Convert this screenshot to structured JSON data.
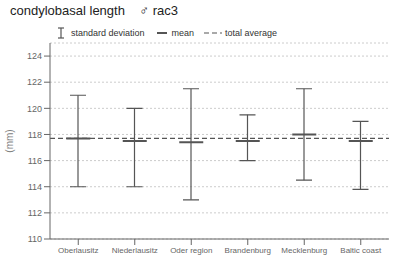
{
  "chart_data": {
    "type": "errorbar",
    "title": "condylobasal length    ♂ rac3",
    "ylabel": "(mm)",
    "categories": [
      "Oberlausitz",
      "Niederlausitz",
      "Oder region",
      "Brandenburg",
      "Mecklenburg",
      "Baltic coast"
    ],
    "series": [
      {
        "name": "standard deviation",
        "type": "errorbar",
        "color": "#555555",
        "upper": [
          121.0,
          120.0,
          121.5,
          119.5,
          121.5,
          119.0
        ],
        "lower": [
          114.0,
          114.0,
          113.0,
          116.0,
          114.5,
          113.8
        ]
      },
      {
        "name": "mean",
        "type": "scatter",
        "marker": "dash",
        "color": "#555555",
        "values": [
          117.7,
          117.5,
          117.4,
          117.5,
          118.0,
          117.5
        ]
      },
      {
        "name": "total average",
        "type": "line",
        "line_style": "dashed",
        "color": "#555555",
        "value": 117.7
      }
    ],
    "ylim": [
      110,
      125
    ],
    "yticks": [
      110,
      112,
      114,
      116,
      118,
      120,
      122,
      124
    ],
    "grid": true,
    "legend": "upper left"
  }
}
